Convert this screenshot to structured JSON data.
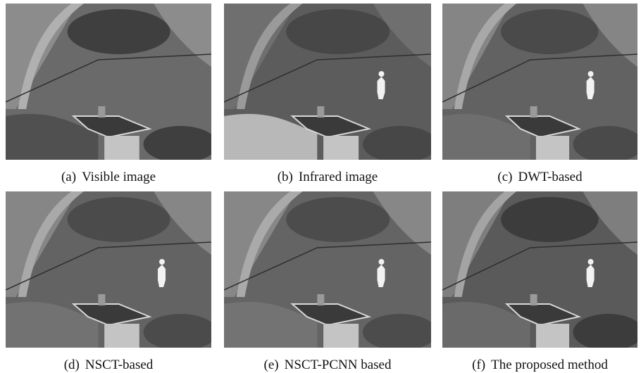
{
  "panels": [
    {
      "label": "(a)",
      "name": "Visible image"
    },
    {
      "label": "(b)",
      "name": "Infrared image"
    },
    {
      "label": "(c)",
      "name": "DWT-based"
    },
    {
      "label": "(d)",
      "name": "NSCT-based"
    },
    {
      "label": "(e)",
      "name": "NSCT-PCNN based"
    },
    {
      "label": "(f)",
      "name": "The proposed method"
    }
  ]
}
